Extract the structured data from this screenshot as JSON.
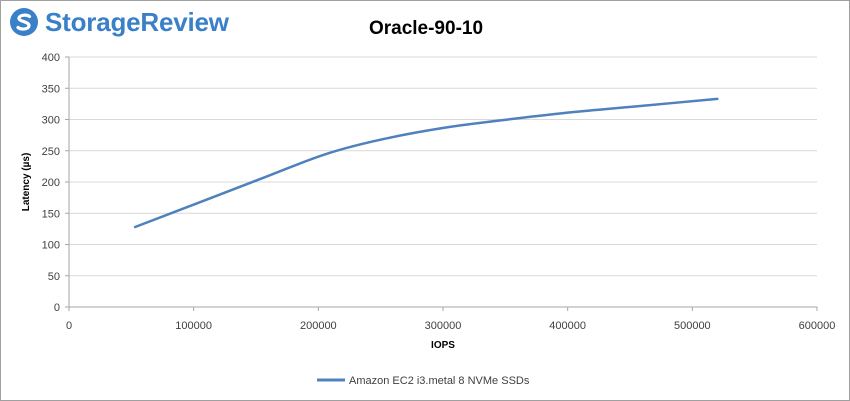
{
  "logo": {
    "text": "StorageReview",
    "icon": "storagereview-logo-icon",
    "color": "#3a80c8"
  },
  "chart_data": {
    "type": "line",
    "title": "Oracle-90-10",
    "xlabel": "IOPS",
    "ylabel": "Latency (µs)",
    "xlim": [
      0,
      600000
    ],
    "ylim": [
      0,
      400
    ],
    "xticks": [
      0,
      100000,
      200000,
      300000,
      400000,
      500000,
      600000
    ],
    "yticks": [
      0,
      50,
      100,
      150,
      200,
      250,
      300,
      350,
      400
    ],
    "grid": "horizontal",
    "legend_position": "bottom",
    "series": [
      {
        "name": "Amazon EC2 i3.metal 8 NVMe SSDs",
        "color": "#4f81bd",
        "x": [
          53000,
          108000,
          160000,
          208000,
          255000,
          305000,
          356000,
          405000,
          455000,
          520000
        ],
        "y": [
          128,
          170,
          210,
          246,
          270,
          288,
          301,
          312,
          321,
          333
        ]
      }
    ]
  }
}
